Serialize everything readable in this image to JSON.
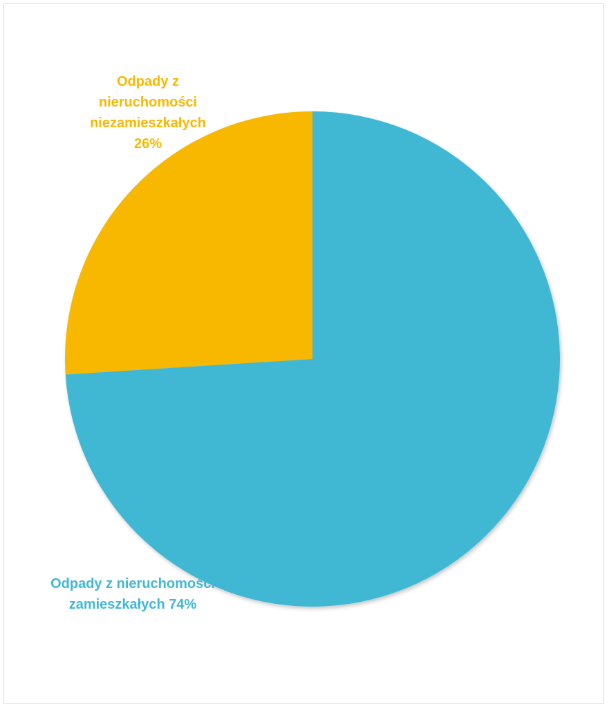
{
  "chart_data": {
    "type": "pie",
    "title": "",
    "colors": [
      "#f9b800",
      "#41b8d3"
    ],
    "slices": [
      {
        "label_lines": [
          "Odpady z",
          "nieruchomości",
          "niezamieszkałych",
          "26%"
        ],
        "value": 26,
        "color": "#f9b800"
      },
      {
        "label_lines": [
          "Odpady z nieruchomości",
          "zamieszkałych 74%"
        ],
        "value": 74,
        "color": "#41b8d3"
      }
    ]
  }
}
